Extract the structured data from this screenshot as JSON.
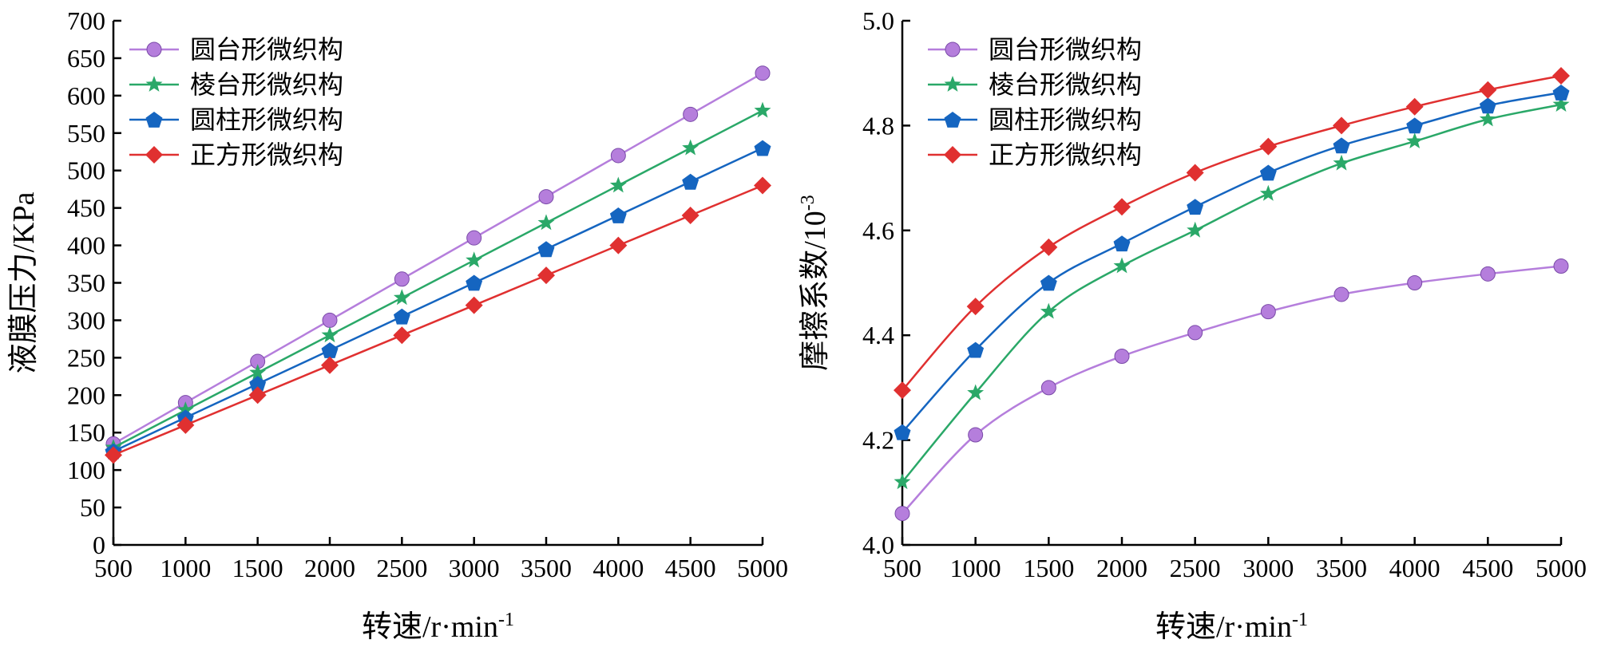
{
  "chart_data": [
    {
      "type": "line",
      "title": "",
      "xlabel": "转速/r·min",
      "xlabel_sup": "-1",
      "ylabel": "液膜压力/KPa",
      "ylabel_sup": "",
      "xlim": [
        500,
        5000
      ],
      "ylim": [
        0,
        700
      ],
      "xticks": [
        500,
        1000,
        1500,
        2000,
        2500,
        3000,
        3500,
        4000,
        4500,
        5000
      ],
      "yticks": [
        0,
        50,
        100,
        150,
        200,
        250,
        300,
        350,
        400,
        450,
        500,
        550,
        600,
        650,
        700
      ],
      "grid": false,
      "legend": "top-left",
      "x": [
        500,
        1000,
        1500,
        2000,
        2500,
        3000,
        3500,
        4000,
        4500,
        5000
      ],
      "series": [
        {
          "name": "圆台形微织构",
          "color": "#b57edc",
          "marker": "circle",
          "values": [
            135,
            190,
            245,
            300,
            355,
            410,
            465,
            520,
            575,
            630
          ]
        },
        {
          "name": "棱台形微织构",
          "color": "#2aa868",
          "marker": "star",
          "values": [
            130,
            180,
            230,
            280,
            330,
            380,
            430,
            480,
            530,
            580
          ]
        },
        {
          "name": "圆柱形微织构",
          "color": "#1565c0",
          "marker": "pentagon",
          "values": [
            125,
            170,
            215,
            260,
            305,
            350,
            395,
            440,
            485,
            530
          ]
        },
        {
          "name": "正方形微织构",
          "color": "#e03030",
          "marker": "diamond",
          "values": [
            120,
            160,
            200,
            240,
            280,
            320,
            360,
            400,
            440,
            480
          ]
        }
      ]
    },
    {
      "type": "line",
      "title": "",
      "xlabel": "转速/r·min",
      "xlabel_sup": "-1",
      "ylabel": "摩擦系数/10",
      "ylabel_sup": "-3",
      "xlim": [
        500,
        5000
      ],
      "ylim": [
        4.0,
        5.0
      ],
      "xticks": [
        500,
        1000,
        1500,
        2000,
        2500,
        3000,
        3500,
        4000,
        4500,
        5000
      ],
      "yticks": [
        4.0,
        4.2,
        4.4,
        4.6,
        4.8,
        5.0
      ],
      "grid": false,
      "legend": "top-left",
      "x": [
        500,
        1000,
        1500,
        2000,
        2500,
        3000,
        3500,
        4000,
        4500,
        5000
      ],
      "series": [
        {
          "name": "圆台形微织构",
          "color": "#b57edc",
          "marker": "circle",
          "values": [
            4.06,
            4.21,
            4.3,
            4.36,
            4.405,
            4.445,
            4.478,
            4.5,
            4.517,
            4.532
          ]
        },
        {
          "name": "棱台形微织构",
          "color": "#2aa868",
          "marker": "star",
          "values": [
            4.12,
            4.29,
            4.445,
            4.532,
            4.6,
            4.67,
            4.728,
            4.77,
            4.812,
            4.84
          ]
        },
        {
          "name": "圆柱形微织构",
          "color": "#1565c0",
          "marker": "pentagon",
          "values": [
            4.215,
            4.372,
            4.5,
            4.575,
            4.645,
            4.71,
            4.762,
            4.8,
            4.838,
            4.863
          ]
        },
        {
          "name": "正方形微织构",
          "color": "#e03030",
          "marker": "diamond",
          "values": [
            4.295,
            4.455,
            4.568,
            4.645,
            4.71,
            4.76,
            4.8,
            4.836,
            4.868,
            4.895
          ]
        }
      ]
    }
  ]
}
